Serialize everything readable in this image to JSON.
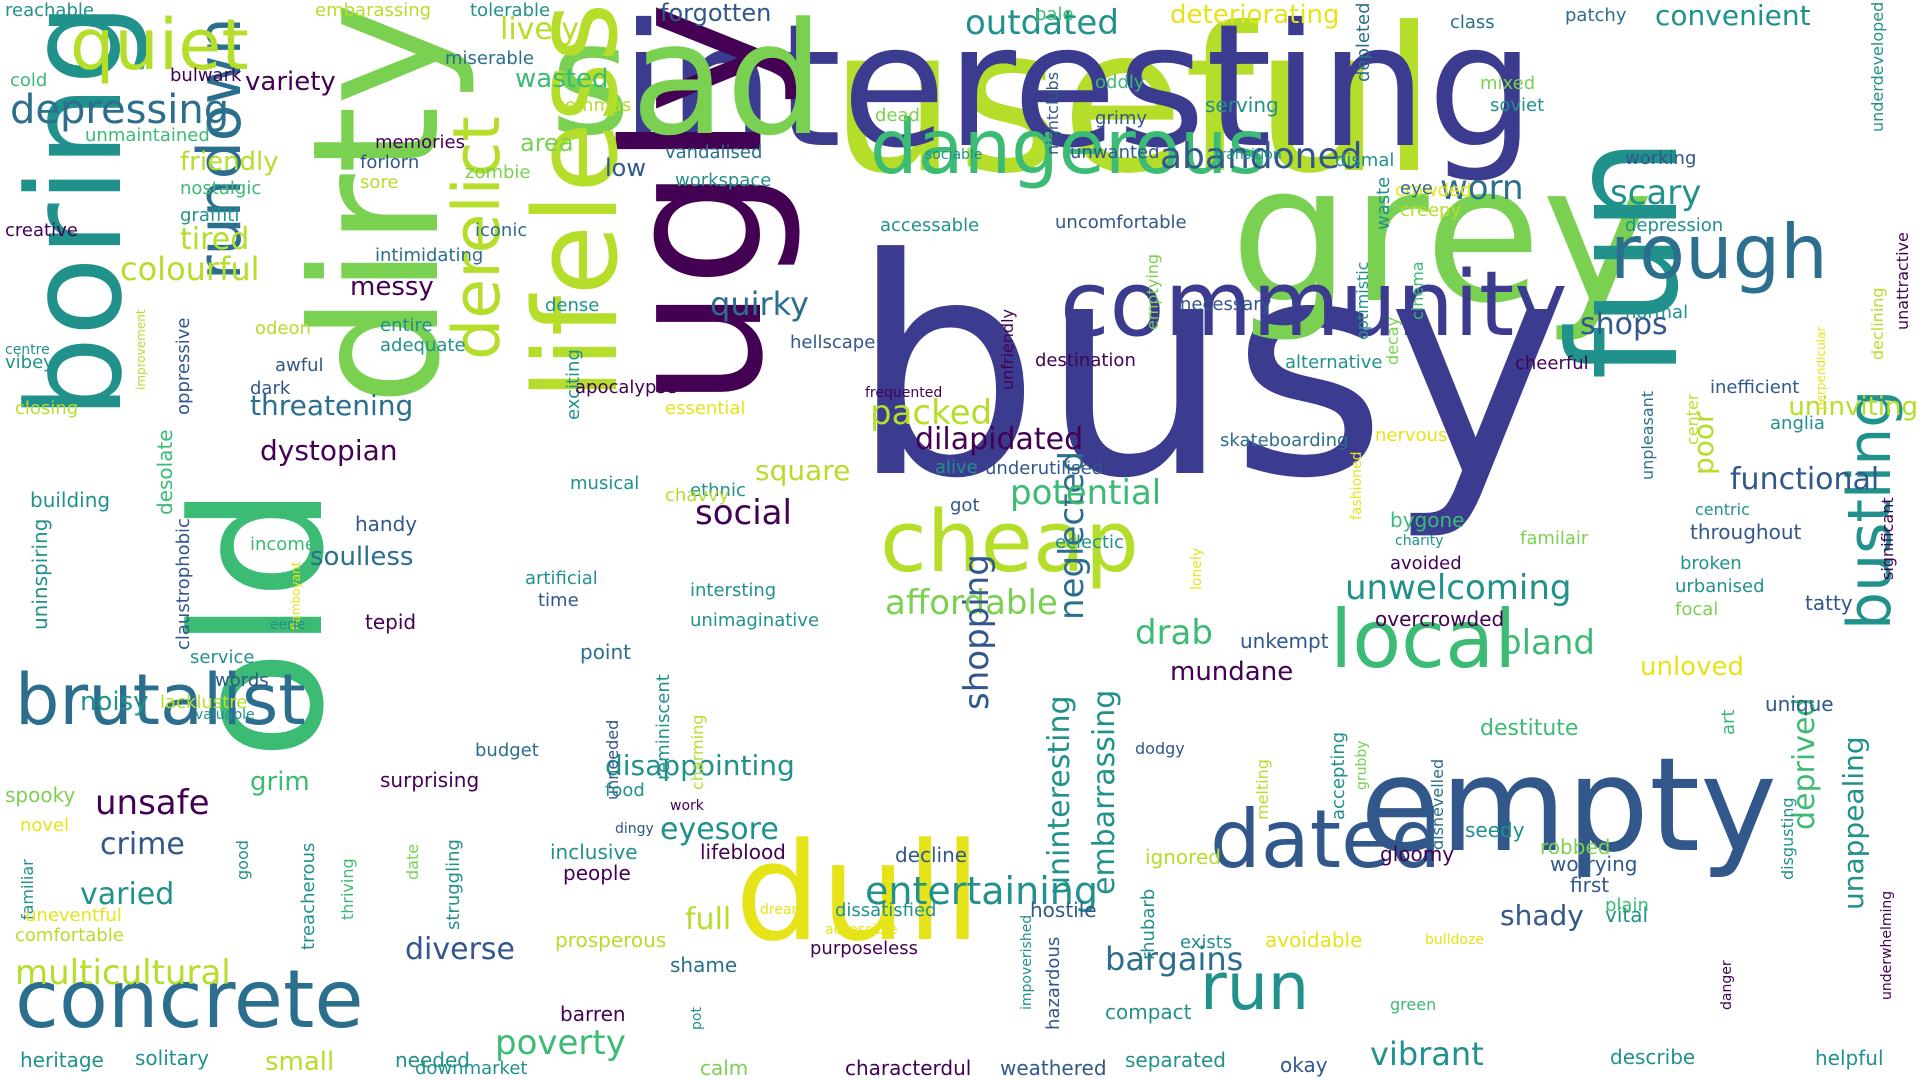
{
  "palette": {
    "dark_purple": "#440154",
    "indigo": "#3b3b8f",
    "blue": "#31578b",
    "steel_blue": "#2c6e8e",
    "teal": "#21918c",
    "green": "#3cbb75",
    "lime": "#7ad151",
    "yellow_green": "#b5de2b",
    "yellow": "#e6e419"
  },
  "words": [
    "busy",
    "useful",
    "interesting",
    "ugly",
    "dirty",
    "grey",
    "fun",
    "sad",
    "old",
    "boring",
    "lifeless",
    "empty",
    "dull",
    "community",
    "dangerous",
    "cheap",
    "brutalist",
    "rundown",
    "concrete",
    "derelict",
    "rough",
    "local",
    "dated",
    "quiet",
    "run",
    "bustling",
    "depressing",
    "abandoned",
    "dilapidated",
    "entertaining",
    "outdated",
    "affordable",
    "shops",
    "worn",
    "scary",
    "unwelcoming",
    "bland",
    "neglected",
    "drab",
    "shopping",
    "multicultural",
    "unsafe",
    "crime",
    "varied",
    "diverse",
    "bargains",
    "poverty",
    "vibrant",
    "potential",
    "functional",
    "eyesore",
    "packed",
    "colourful",
    "threatening",
    "dystopian",
    "social",
    "quirky",
    "square",
    "lively",
    "variety",
    "friendly",
    "tired",
    "messy",
    "soulless",
    "noisy",
    "disappointing",
    "uninteresting",
    "mundane",
    "unloved",
    "poor",
    "deprived",
    "unappealing",
    "uninviting",
    "embarrassing",
    "full",
    "shady",
    "small",
    "forgotten",
    "convenient",
    "deteriorating",
    "reachable",
    "tolerable",
    "embarassing",
    "class",
    "patchy",
    "pale",
    "cold",
    "miserable",
    "bulwark",
    "oddly",
    "mixed",
    "soviet",
    "serving",
    "nightclubs",
    "depleted",
    "underdeveloped",
    "wasted",
    "commas",
    "dead",
    "grimy",
    "memories",
    "unmaintained",
    "area",
    "forlorn",
    "vandalised",
    "zombie",
    "sociable",
    "unwanted",
    "transition",
    "dismal",
    "working",
    "low",
    "workspace",
    "nostalgic",
    "sore",
    "creative",
    "graffiti",
    "iconic",
    "accessable",
    "uncomfortable",
    "crowded",
    "creepy",
    "eye",
    "waste",
    "depression",
    "optimistic",
    "cinema",
    "intimidating",
    "unattractive",
    "declining",
    "emptying",
    "decay",
    "necessary",
    "unfriendly",
    "normal",
    "dense",
    "vibey",
    "improvement",
    "oppressive",
    "entire",
    "adequate",
    "centre",
    "odeon",
    "hellscape",
    "awful",
    "destination",
    "alternative",
    "cheerful",
    "perpendicular",
    "exciting",
    "inefficient",
    "closing",
    "dark",
    "essential",
    "apocalypse",
    "frequented",
    "center",
    "anglia",
    "unpleasant",
    "skateboarding",
    "nervous",
    "alive",
    "underutilised",
    "fashioned",
    "desolate",
    "building",
    "ethnic",
    "got",
    "uninspiring",
    "musical",
    "chavvy",
    "bygone",
    "centric",
    "significant",
    "handy",
    "claustrophobic",
    "eclectic",
    "charity",
    "familair",
    "throughout",
    "income",
    "lonely",
    "avoided",
    "broken",
    "urbanised",
    "flamboyant",
    "artificial",
    "time",
    "intersting",
    "tatty",
    "focal",
    "eerie",
    "tepid",
    "unimaginative",
    "overcrowded",
    "service",
    "unkempt",
    "words",
    "point",
    "reminiscent",
    "lacklustre",
    "valuable",
    "unneeded",
    "charming",
    "unique",
    "art",
    "destitute",
    "budget",
    "grim",
    "spooky",
    "surprising",
    "food",
    "dodgy",
    "melting",
    "accepting",
    "grubby",
    "dishevelled",
    "seedy",
    "novel",
    "work",
    "disgusting",
    "date",
    "good",
    "struggling",
    "dingy",
    "inclusive",
    "lifeblood",
    "decline",
    "ignored",
    "gloomy",
    "robbed",
    "people",
    "familiar",
    "thriving",
    "treacherous",
    "worrying",
    "first",
    "vital",
    "uneventful",
    "dreary",
    "dissatisfied",
    "hostile",
    "rhubarb",
    "plain",
    "comfortable",
    "accessible",
    "bulldoze",
    "prosperous",
    "exists",
    "avoidable",
    "purposeless",
    "impoverished",
    "shame",
    "hazardous",
    "underwhelming",
    "heritage",
    "barren",
    "danger",
    "solitary",
    "pot",
    "compact",
    "green",
    "describe",
    "helpful",
    "needed",
    "downmarket",
    "separated",
    "okay",
    "calm",
    "characterdul",
    "weathered"
  ]
}
